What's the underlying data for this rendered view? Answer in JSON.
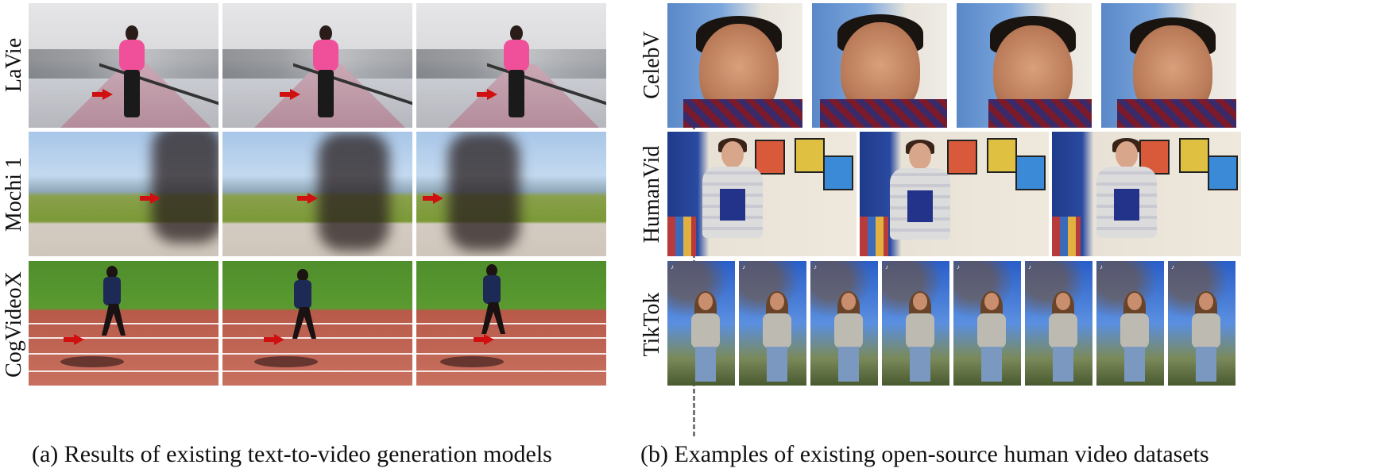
{
  "left_panel": {
    "rows": [
      {
        "label": "LaVie"
      },
      {
        "label": "Mochi 1"
      },
      {
        "label": "CogVideoX"
      }
    ],
    "caption": "(a) Results of existing text-to-video generation models"
  },
  "right_panel": {
    "rows": [
      {
        "label": "CelebV"
      },
      {
        "label": "HumanVid"
      },
      {
        "label": "TikTok"
      }
    ],
    "caption": "(b) Examples of existing open-source human video datasets"
  },
  "colors": {
    "arrow": "#d01010",
    "divider": "#777777"
  }
}
